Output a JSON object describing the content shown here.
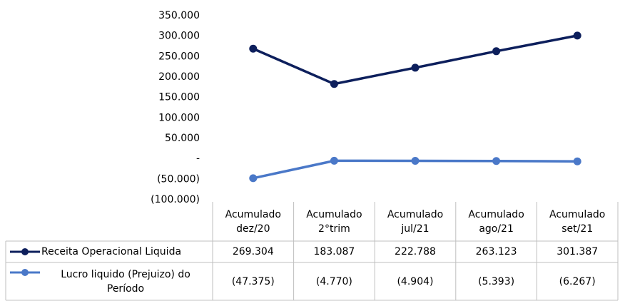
{
  "chart_data": {
    "type": "line",
    "categories": [
      "Acumulado dez/20",
      "Acumulado 2°trim",
      "Acumulado jul/21",
      "Acumulado ago/21",
      "Acumulado set/21"
    ],
    "series": [
      {
        "name": "Receita Operacional Liquida",
        "color": "#0d1f5c",
        "values": [
          269304,
          183087,
          222788,
          263123,
          301387
        ],
        "value_labels": [
          "269.304",
          "183.087",
          "222.788",
          "263.123",
          "301.387"
        ]
      },
      {
        "name": "Lucro liquido (Prejuizo) do Período",
        "color": "#4a78c8",
        "values": [
          -47375,
          -4770,
          -4904,
          -5393,
          -6267
        ],
        "value_labels": [
          "(47.375)",
          "(4.770)",
          "(4.904)",
          "(5.393)",
          "(6.267)"
        ]
      }
    ],
    "ylim": [
      -100000,
      350000
    ],
    "yticks": [
      {
        "value": 350000,
        "label": "350.000"
      },
      {
        "value": 300000,
        "label": "300.000"
      },
      {
        "value": 250000,
        "label": "250.000"
      },
      {
        "value": 200000,
        "label": "200.000"
      },
      {
        "value": 150000,
        "label": "150.000"
      },
      {
        "value": 100000,
        "label": "100.000"
      },
      {
        "value": 50000,
        "label": "50.000"
      },
      {
        "value": 0,
        "label": "-"
      },
      {
        "value": -50000,
        "label": "(50.000)"
      },
      {
        "value": -100000,
        "label": "(100.000)"
      }
    ],
    "grid": false
  }
}
